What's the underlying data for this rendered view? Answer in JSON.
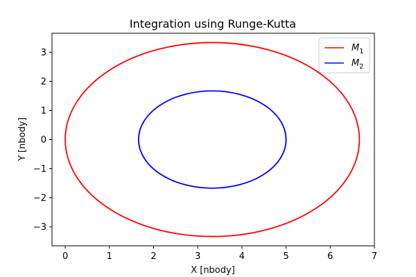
{
  "chart_data": {
    "type": "line",
    "title": "Integration using Runge-Kutta",
    "xlabel": "X [nbody]",
    "ylabel": "Y [nbody]",
    "xlim": [
      -0.3,
      7.0
    ],
    "ylim": [
      -3.65,
      3.65
    ],
    "x_ticks": [
      "0",
      "1",
      "2",
      "3",
      "4",
      "5",
      "6",
      "7"
    ],
    "y_ticks": [
      "−3",
      "−2",
      "−1",
      "0",
      "1",
      "2",
      "3"
    ],
    "x_tick_values": [
      0,
      1,
      2,
      3,
      4,
      5,
      6,
      7
    ],
    "y_tick_values": [
      -3,
      -2,
      -1,
      0,
      1,
      2,
      3
    ],
    "grid": false,
    "legend_position": "top-right",
    "series": [
      {
        "name": "M",
        "subscript": "1",
        "color": "#ff0000",
        "shape": "ellipse",
        "center": [
          3.33,
          0.0
        ],
        "semi_axes": [
          3.33,
          3.33
        ]
      },
      {
        "name": "M",
        "subscript": "2",
        "color": "#0000ff",
        "shape": "ellipse",
        "center": [
          3.33,
          0.0
        ],
        "semi_axes": [
          1.67,
          1.67
        ]
      }
    ]
  }
}
